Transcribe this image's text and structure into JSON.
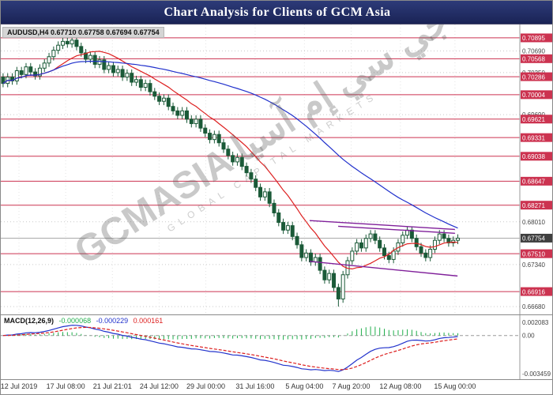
{
  "header": {
    "title": "Chart Analysis for Clients of GCM Asia"
  },
  "watermark": {
    "latin": "GCMASIA",
    "arabic": "جي سي إم آسيا",
    "subtitle": "GLOBAL CAPITAL MARKETS"
  },
  "price_chart": {
    "symbol_label": "AUDUSD,H4 0.67710 0.67758 0.67694 0.67754"
  },
  "macd": {
    "label": "MACD(12,26,9)",
    "values": [
      "-0.000068",
      "-0.000229",
      "0.000161"
    ]
  },
  "chart_data": {
    "type": "candlestick",
    "title": "Chart Analysis for Clients of GCM Asia",
    "symbol": "AUDUSD",
    "timeframe": "H4",
    "ohlc_current": {
      "open": 0.6771,
      "high": 0.67758,
      "low": 0.67694,
      "close": 0.67754
    },
    "current_price": 0.67754,
    "ylim": [
      0.6657,
      0.7108
    ],
    "x_span": 0.885,
    "wick_estimate": 0.0006,
    "high_point": {
      "index": 15,
      "price": 0.70895
    },
    "low_point": {
      "index": 73,
      "price": 0.6668
    },
    "close_estimates": [
      0.7018,
      0.7028,
      0.7022,
      0.7038,
      0.7032,
      0.7044,
      0.7036,
      0.703,
      0.7042,
      0.705,
      0.706,
      0.707,
      0.7078,
      0.7084,
      0.708,
      0.7086,
      0.7076,
      0.7066,
      0.7056,
      0.7062,
      0.7048,
      0.7055,
      0.704,
      0.7046,
      0.7035,
      0.704,
      0.7028,
      0.7034,
      0.702,
      0.7024,
      0.7012,
      0.7018,
      0.7005,
      0.6998,
      0.699,
      0.6995,
      0.6982,
      0.6975,
      0.6968,
      0.6975,
      0.6962,
      0.6955,
      0.6962,
      0.6948,
      0.694,
      0.693,
      0.6938,
      0.6925,
      0.6915,
      0.6905,
      0.6895,
      0.6902,
      0.6888,
      0.6878,
      0.6868,
      0.6855,
      0.684,
      0.6848,
      0.683,
      0.6815,
      0.68,
      0.6788,
      0.6795,
      0.6778,
      0.6765,
      0.6745,
      0.6752,
      0.6738,
      0.6745,
      0.6725,
      0.671,
      0.672,
      0.6698,
      0.668,
      0.6718,
      0.674,
      0.6755,
      0.6768,
      0.676,
      0.6775,
      0.6782,
      0.6772,
      0.676,
      0.6748,
      0.6742,
      0.6755,
      0.6768,
      0.678,
      0.6788,
      0.6775,
      0.6762,
      0.6752,
      0.6745,
      0.6758,
      0.6772,
      0.6782,
      0.6775,
      0.6768,
      0.6772,
      0.67754
    ],
    "sr_levels": [
      0.70895,
      0.70568,
      0.70286,
      0.70004,
      0.69621,
      0.69331,
      0.69038,
      0.68647,
      0.68271,
      0.6751,
      0.66916
    ],
    "grid_levels": [
      0.7069,
      0.7035,
      0.6969,
      0.6801,
      0.6734,
      0.6668
    ],
    "moving_averages": [
      {
        "name": "fast-ma",
        "period": 12,
        "color": "#dd2020"
      },
      {
        "name": "slow-ma",
        "period": 55,
        "color": "#2030cc"
      }
    ],
    "trendlines": [
      {
        "x1": 0.595,
        "p1": 0.6803,
        "x2": 0.875,
        "p2": 0.6789
      },
      {
        "x1": 0.65,
        "p1": 0.6794,
        "x2": 0.875,
        "p2": 0.6783
      },
      {
        "x1": 0.595,
        "p1": 0.6739,
        "x2": 0.88,
        "p2": 0.6716
      }
    ],
    "trendline_color": "#80209a",
    "colors": {
      "bull": "#ffffff",
      "bear": "#1b5a38",
      "sr": "#cc3350",
      "current_badge": "#3f3f3f",
      "grid": "#c9c9c9"
    },
    "x_ticks": [
      {
        "label": "12 Jul 2019",
        "pos": 0.035
      },
      {
        "label": "17 Jul 08:00",
        "pos": 0.125
      },
      {
        "label": "21 Jul 21:01",
        "pos": 0.215
      },
      {
        "label": "24 Jul 12:00",
        "pos": 0.305
      },
      {
        "label": "29 Jul 00:00",
        "pos": 0.395
      },
      {
        "label": "31 Jul 16:00",
        "pos": 0.49
      },
      {
        "label": "5 Aug 04:00",
        "pos": 0.585
      },
      {
        "label": "7 Aug 20:00",
        "pos": 0.675
      },
      {
        "label": "12 Aug 08:00",
        "pos": 0.77
      },
      {
        "label": "15 Aug 00:00",
        "pos": 0.875
      }
    ],
    "macd_panel": {
      "type": "macd",
      "params": [
        12,
        26,
        9
      ],
      "axis_labels": {
        "top": "0.002083",
        "zero": "0.00",
        "bottom": "-0.003459"
      },
      "colors": {
        "histogram": "#1fae4b",
        "macd_line": "#2233cc",
        "signal_line": "#dd2020"
      }
    }
  }
}
